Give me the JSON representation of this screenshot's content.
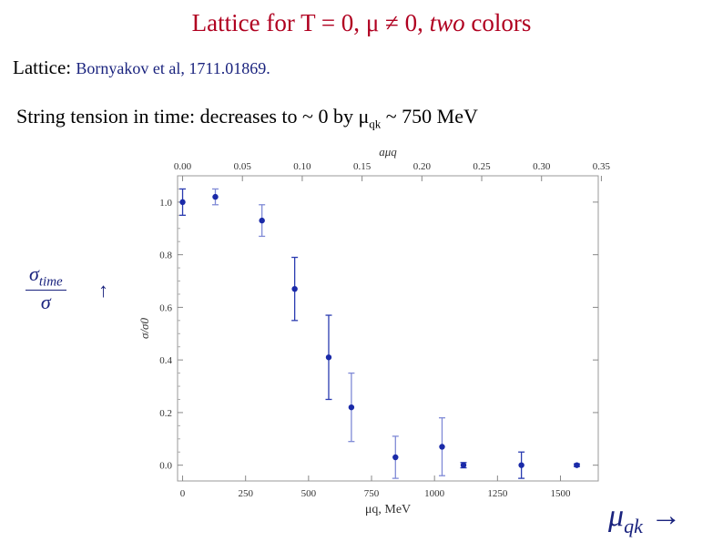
{
  "slide": {
    "title_parts": [
      "Lattice for T = 0, ",
      "μ ≠ 0, ",
      "two",
      " colors"
    ],
    "lattice_label": "Lattice:",
    "lattice_ref": "Bornyakov et al, 1711.01869.",
    "tension_text": "String tension in time: decreases to ~ 0 by μ",
    "tension_sub": "qk",
    "tension_tail": " ~ 750 MeV",
    "side_fraction": {
      "num": "σ",
      "num_sub": "time",
      "den": "σ",
      "arrow": "↑"
    },
    "mu_label": {
      "base": "μ",
      "sub": "qk",
      "arrow": "→"
    }
  },
  "chart_data": {
    "type": "scatter",
    "title": "",
    "xlabel": "μq, MeV",
    "ylabel": "σ/σ0",
    "x2label": "aμq",
    "xlim": [
      -20,
      1650
    ],
    "ylim": [
      -0.06,
      1.1
    ],
    "x2lim": [
      -0.0042,
      0.3474
    ],
    "xticks": [
      0,
      250,
      500,
      750,
      1000,
      1250,
      1500
    ],
    "yticks": [
      0.0,
      0.2,
      0.4,
      0.6,
      0.8,
      1.0
    ],
    "ytick_labels": [
      "0.0",
      "0.2",
      "0.4",
      "0.6",
      "0.8",
      "1.0"
    ],
    "x2ticks": [
      0.0,
      0.05,
      0.1,
      0.15,
      0.2,
      0.25,
      0.3,
      0.35
    ],
    "x2tick_labels": [
      "0.00",
      "0.05",
      "0.10",
      "0.15",
      "0.20",
      "0.25",
      "0.30",
      "0.35"
    ],
    "grid": false,
    "series": [
      {
        "x": [
          0,
          130,
          315,
          445,
          580,
          670,
          845,
          1030,
          1115,
          1345,
          1565
        ],
        "y": [
          1.0,
          1.02,
          0.93,
          0.67,
          0.41,
          0.22,
          0.03,
          0.07,
          0.0,
          0.0,
          0.0
        ],
        "yerr": [
          0.05,
          0.03,
          0.06,
          0.12,
          0.16,
          0.13,
          0.08,
          0.11,
          0.01,
          0.05,
          0.005
        ],
        "color": "#1a2aa8"
      }
    ]
  }
}
